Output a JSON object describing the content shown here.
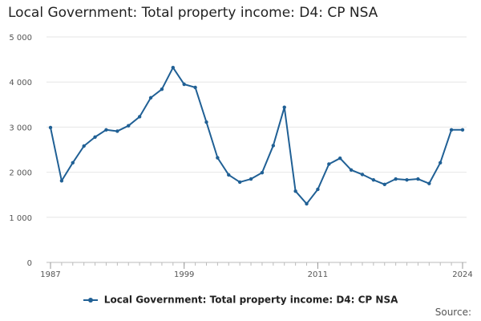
{
  "chart_data": {
    "type": "line",
    "title": "Local Government: Total property income: D4: CP NSA",
    "xlabel": "",
    "ylabel": "",
    "x": [
      1987,
      1988,
      1989,
      1990,
      1991,
      1992,
      1993,
      1994,
      1995,
      1996,
      1997,
      1998,
      1999,
      2000,
      2001,
      2002,
      2003,
      2004,
      2005,
      2006,
      2007,
      2008,
      2009,
      2010,
      2011,
      2012,
      2013,
      2014,
      2015,
      2016,
      2017,
      2018,
      2019,
      2020,
      2021,
      2022,
      2023,
      2024
    ],
    "series": [
      {
        "name": "Local Government: Total property income: D4: CP NSA",
        "color": "#206095",
        "values": [
          2990,
          1810,
          2210,
          2580,
          2780,
          2940,
          2910,
          3030,
          3230,
          3650,
          3840,
          4320,
          3950,
          3880,
          3110,
          2320,
          1940,
          1780,
          1850,
          1990,
          2590,
          3440,
          1580,
          1300,
          1620,
          2180,
          2310,
          2050,
          1950,
          1830,
          1730,
          1850,
          1830,
          1850,
          1750,
          2210,
          2940,
          2940
        ]
      }
    ],
    "ylim": [
      0,
      5000
    ],
    "yticks": [
      0,
      1000,
      2000,
      3000,
      4000,
      5000
    ],
    "ytick_labels": [
      "0",
      "1 000",
      "2 000",
      "3 000",
      "4 000",
      "5 000"
    ],
    "xticks": [
      1987,
      1999,
      2011,
      2024
    ],
    "xtick_labels": [
      "1987",
      "1999",
      "2011",
      "2024"
    ],
    "grid": true,
    "legend_position": "bottom",
    "source_label": "Source:"
  }
}
